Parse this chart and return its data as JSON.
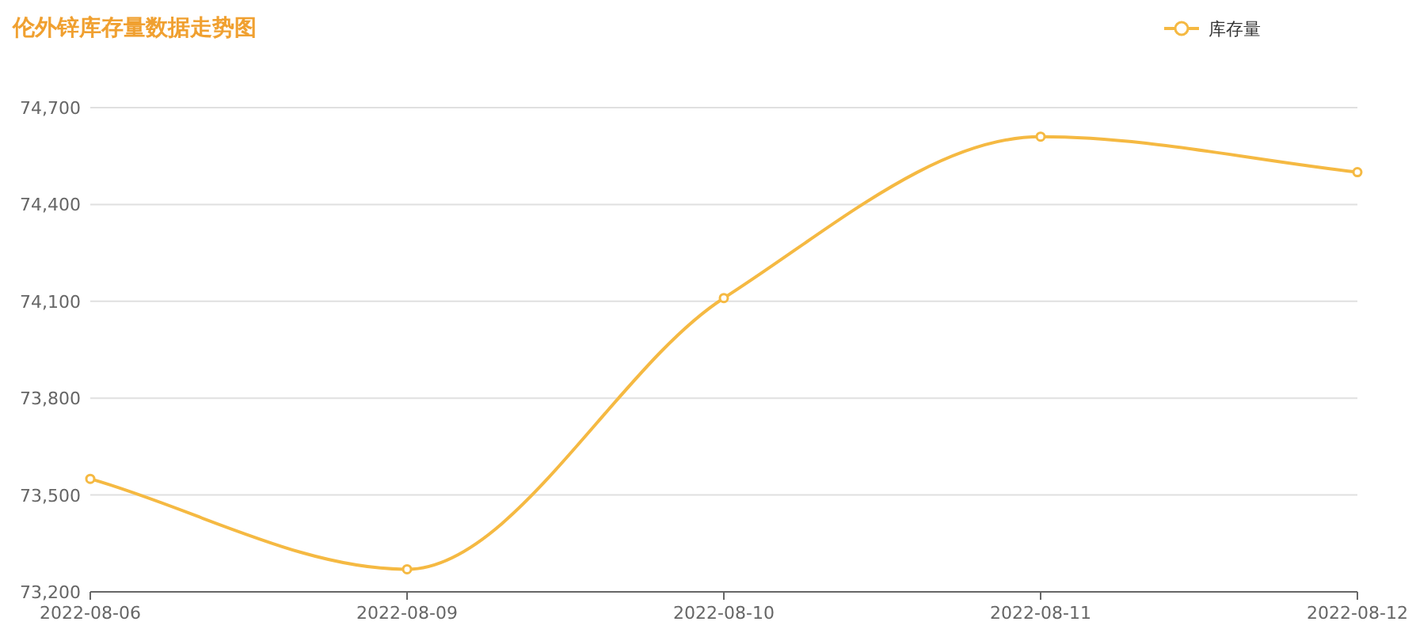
{
  "chart_data": {
    "type": "line",
    "title": "伦外锌库存量数据走势图",
    "categories": [
      "2022-08-06",
      "2022-08-09",
      "2022-08-10",
      "2022-08-11",
      "2022-08-12"
    ],
    "series": [
      {
        "name": "库存量",
        "color": "#f5b942",
        "values": [
          73550,
          73270,
          74110,
          74610,
          74500
        ]
      }
    ],
    "ylim": [
      73200,
      74700
    ],
    "yticks": [
      {
        "value": 73200,
        "label": "73,200"
      },
      {
        "value": 73500,
        "label": "73,500"
      },
      {
        "value": 73800,
        "label": "73,800"
      },
      {
        "value": 74100,
        "label": "74,100"
      },
      {
        "value": 74400,
        "label": "74,400"
      },
      {
        "value": 74700,
        "label": "74,700"
      }
    ],
    "grid": "y",
    "legend": "top right",
    "marker": "circle"
  }
}
